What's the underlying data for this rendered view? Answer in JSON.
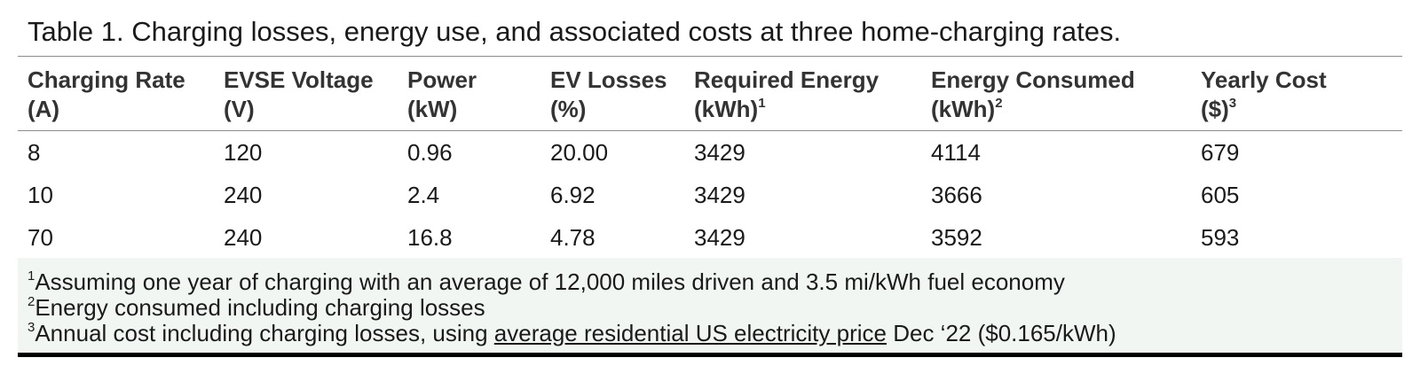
{
  "caption": "Table 1. Charging losses, energy use, and associated costs at three home-charging rates.",
  "columns": [
    {
      "line1": "Charging Rate",
      "line2": "(A)",
      "sup": ""
    },
    {
      "line1": "EVSE Voltage",
      "line2": "(V)",
      "sup": ""
    },
    {
      "line1": "Power",
      "line2": "(kW)",
      "sup": ""
    },
    {
      "line1": "EV Losses",
      "line2": "(%)",
      "sup": ""
    },
    {
      "line1": "Required Energy",
      "line2": "(kWh)",
      "sup": "1"
    },
    {
      "line1": "Energy Consumed",
      "line2": "(kWh)",
      "sup": "2"
    },
    {
      "line1": "Yearly Cost",
      "line2": "($)",
      "sup": "3"
    }
  ],
  "rows": [
    [
      "8",
      "120",
      "0.96",
      "20.00",
      "3429",
      "4114",
      "679"
    ],
    [
      "10",
      "240",
      "2.4",
      "6.92",
      "3429",
      "3666",
      "605"
    ],
    [
      "70",
      "240",
      "16.8",
      "4.78",
      "3429",
      "3592",
      "593"
    ]
  ],
  "notes": [
    {
      "marker": "1",
      "text": "Assuming one year of charging with an average of 12,000 miles driven and 3.5 mi/kWh fuel economy"
    },
    {
      "marker": "2",
      "text": "Energy consumed including charging losses"
    },
    {
      "marker": "3",
      "text_before": "Annual cost including charging losses, using ",
      "link": "average residential US electricity price",
      "text_after": " Dec ‘22 ($0.165/kWh)"
    }
  ]
}
